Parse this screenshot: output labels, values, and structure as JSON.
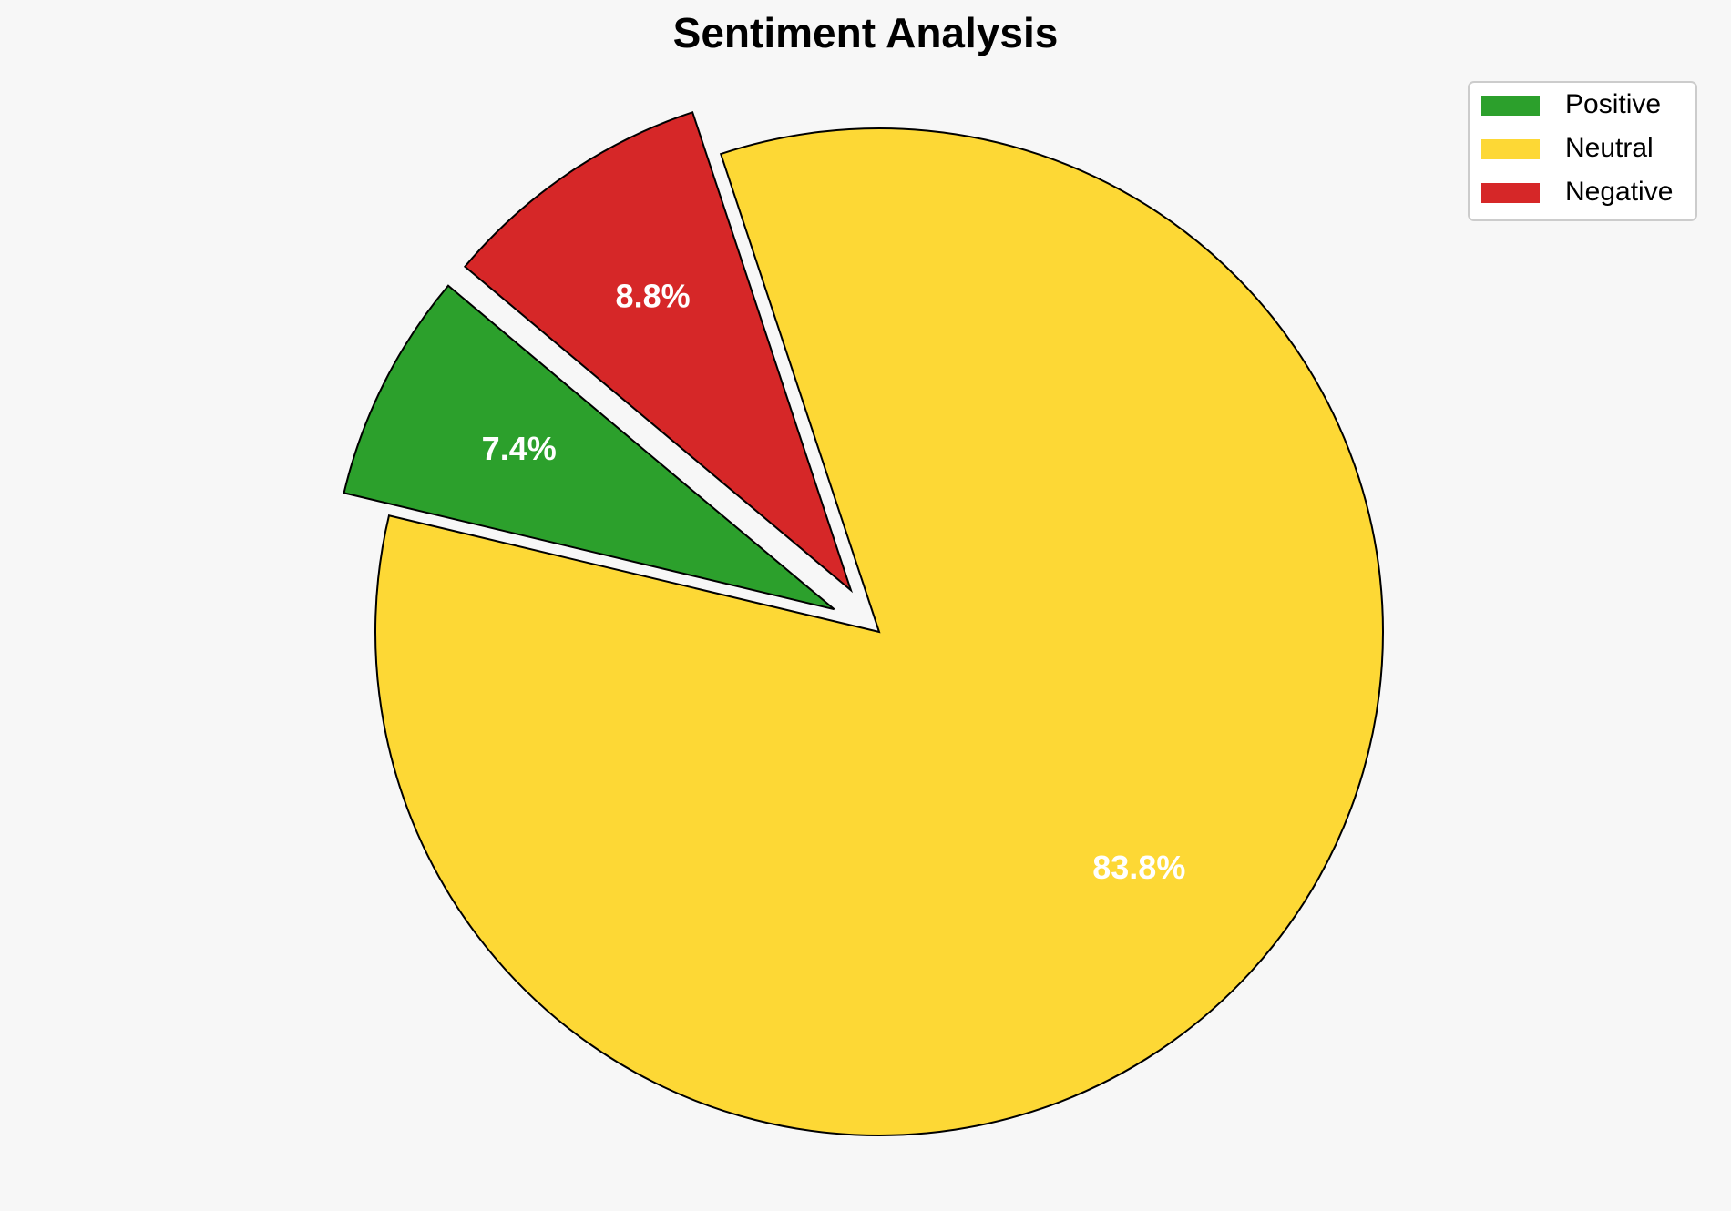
{
  "chart_data": {
    "type": "pie",
    "title": "Sentiment Analysis",
    "categories": [
      "Positive",
      "Neutral",
      "Negative"
    ],
    "values": [
      7.4,
      83.8,
      8.8
    ],
    "value_labels": [
      "7.4%",
      "83.8%",
      "8.8%"
    ],
    "colors": [
      "#2ca02c",
      "#fdd835",
      "#d62728"
    ],
    "legend": "upper right"
  }
}
